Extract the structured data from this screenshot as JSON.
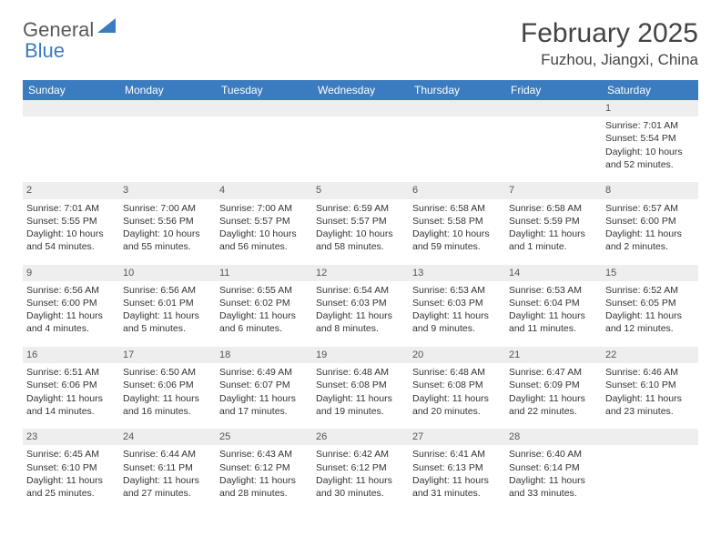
{
  "logo": {
    "general": "General",
    "blue": "Blue"
  },
  "title": "February 2025",
  "location": "Fuzhou, Jiangxi, China",
  "colors": {
    "header_bg": "#3b7bbf",
    "header_fg": "#ffffff",
    "daynum_bg": "#eeeeee",
    "text": "#333333"
  },
  "weekdays": [
    "Sunday",
    "Monday",
    "Tuesday",
    "Wednesday",
    "Thursday",
    "Friday",
    "Saturday"
  ],
  "weeks": [
    [
      null,
      null,
      null,
      null,
      null,
      null,
      {
        "n": "1",
        "sr": "Sunrise: 7:01 AM",
        "ss": "Sunset: 5:54 PM",
        "dl": "Daylight: 10 hours and 52 minutes."
      }
    ],
    [
      {
        "n": "2",
        "sr": "Sunrise: 7:01 AM",
        "ss": "Sunset: 5:55 PM",
        "dl": "Daylight: 10 hours and 54 minutes."
      },
      {
        "n": "3",
        "sr": "Sunrise: 7:00 AM",
        "ss": "Sunset: 5:56 PM",
        "dl": "Daylight: 10 hours and 55 minutes."
      },
      {
        "n": "4",
        "sr": "Sunrise: 7:00 AM",
        "ss": "Sunset: 5:57 PM",
        "dl": "Daylight: 10 hours and 56 minutes."
      },
      {
        "n": "5",
        "sr": "Sunrise: 6:59 AM",
        "ss": "Sunset: 5:57 PM",
        "dl": "Daylight: 10 hours and 58 minutes."
      },
      {
        "n": "6",
        "sr": "Sunrise: 6:58 AM",
        "ss": "Sunset: 5:58 PM",
        "dl": "Daylight: 10 hours and 59 minutes."
      },
      {
        "n": "7",
        "sr": "Sunrise: 6:58 AM",
        "ss": "Sunset: 5:59 PM",
        "dl": "Daylight: 11 hours and 1 minute."
      },
      {
        "n": "8",
        "sr": "Sunrise: 6:57 AM",
        "ss": "Sunset: 6:00 PM",
        "dl": "Daylight: 11 hours and 2 minutes."
      }
    ],
    [
      {
        "n": "9",
        "sr": "Sunrise: 6:56 AM",
        "ss": "Sunset: 6:00 PM",
        "dl": "Daylight: 11 hours and 4 minutes."
      },
      {
        "n": "10",
        "sr": "Sunrise: 6:56 AM",
        "ss": "Sunset: 6:01 PM",
        "dl": "Daylight: 11 hours and 5 minutes."
      },
      {
        "n": "11",
        "sr": "Sunrise: 6:55 AM",
        "ss": "Sunset: 6:02 PM",
        "dl": "Daylight: 11 hours and 6 minutes."
      },
      {
        "n": "12",
        "sr": "Sunrise: 6:54 AM",
        "ss": "Sunset: 6:03 PM",
        "dl": "Daylight: 11 hours and 8 minutes."
      },
      {
        "n": "13",
        "sr": "Sunrise: 6:53 AM",
        "ss": "Sunset: 6:03 PM",
        "dl": "Daylight: 11 hours and 9 minutes."
      },
      {
        "n": "14",
        "sr": "Sunrise: 6:53 AM",
        "ss": "Sunset: 6:04 PM",
        "dl": "Daylight: 11 hours and 11 minutes."
      },
      {
        "n": "15",
        "sr": "Sunrise: 6:52 AM",
        "ss": "Sunset: 6:05 PM",
        "dl": "Daylight: 11 hours and 12 minutes."
      }
    ],
    [
      {
        "n": "16",
        "sr": "Sunrise: 6:51 AM",
        "ss": "Sunset: 6:06 PM",
        "dl": "Daylight: 11 hours and 14 minutes."
      },
      {
        "n": "17",
        "sr": "Sunrise: 6:50 AM",
        "ss": "Sunset: 6:06 PM",
        "dl": "Daylight: 11 hours and 16 minutes."
      },
      {
        "n": "18",
        "sr": "Sunrise: 6:49 AM",
        "ss": "Sunset: 6:07 PM",
        "dl": "Daylight: 11 hours and 17 minutes."
      },
      {
        "n": "19",
        "sr": "Sunrise: 6:48 AM",
        "ss": "Sunset: 6:08 PM",
        "dl": "Daylight: 11 hours and 19 minutes."
      },
      {
        "n": "20",
        "sr": "Sunrise: 6:48 AM",
        "ss": "Sunset: 6:08 PM",
        "dl": "Daylight: 11 hours and 20 minutes."
      },
      {
        "n": "21",
        "sr": "Sunrise: 6:47 AM",
        "ss": "Sunset: 6:09 PM",
        "dl": "Daylight: 11 hours and 22 minutes."
      },
      {
        "n": "22",
        "sr": "Sunrise: 6:46 AM",
        "ss": "Sunset: 6:10 PM",
        "dl": "Daylight: 11 hours and 23 minutes."
      }
    ],
    [
      {
        "n": "23",
        "sr": "Sunrise: 6:45 AM",
        "ss": "Sunset: 6:10 PM",
        "dl": "Daylight: 11 hours and 25 minutes."
      },
      {
        "n": "24",
        "sr": "Sunrise: 6:44 AM",
        "ss": "Sunset: 6:11 PM",
        "dl": "Daylight: 11 hours and 27 minutes."
      },
      {
        "n": "25",
        "sr": "Sunrise: 6:43 AM",
        "ss": "Sunset: 6:12 PM",
        "dl": "Daylight: 11 hours and 28 minutes."
      },
      {
        "n": "26",
        "sr": "Sunrise: 6:42 AM",
        "ss": "Sunset: 6:12 PM",
        "dl": "Daylight: 11 hours and 30 minutes."
      },
      {
        "n": "27",
        "sr": "Sunrise: 6:41 AM",
        "ss": "Sunset: 6:13 PM",
        "dl": "Daylight: 11 hours and 31 minutes."
      },
      {
        "n": "28",
        "sr": "Sunrise: 6:40 AM",
        "ss": "Sunset: 6:14 PM",
        "dl": "Daylight: 11 hours and 33 minutes."
      },
      null
    ]
  ]
}
